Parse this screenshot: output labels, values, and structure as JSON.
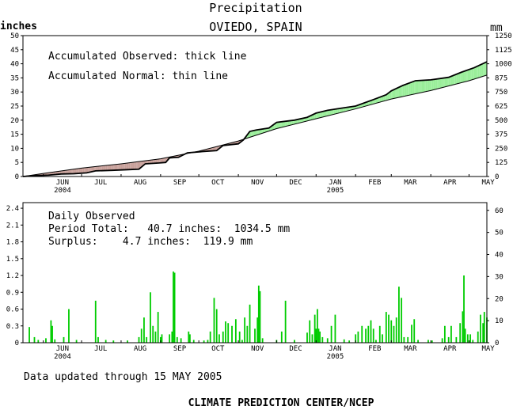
{
  "title": "Precipitation",
  "subtitle": "OVIEDO, SPAIN",
  "left_unit": "inches",
  "right_unit": "mm",
  "legend": {
    "observed": "Accumulated Observed: thick line",
    "normal": "Accumulated Normal: thin line"
  },
  "daily_box": {
    "title": "Daily Observed",
    "total": "Period Total:   40.7 inches:  1034.5 mm",
    "surplus": "Surplus:    4.7 inches:  119.9 mm"
  },
  "footer": {
    "updated": "Data updated through 15 MAY 2005",
    "credit": "CLIMATE PREDICTION CENTER/NCEP"
  },
  "colors": {
    "surplus_fill": "#99ee99",
    "deficit_fill": "#c8a09a",
    "daily_bar": "#00cc00"
  },
  "chart_data": [
    {
      "type": "area",
      "x_axis": {
        "type": "date",
        "start": "2004-05-16",
        "end": "2005-05-15",
        "ticks": [
          {
            "date": "2004-06-01",
            "label": "JUN",
            "year": "2004"
          },
          {
            "date": "2004-07-01",
            "label": "JUL"
          },
          {
            "date": "2004-08-01",
            "label": "AUG"
          },
          {
            "date": "2004-09-01",
            "label": "SEP"
          },
          {
            "date": "2004-10-01",
            "label": "OCT"
          },
          {
            "date": "2004-11-01",
            "label": "NOV"
          },
          {
            "date": "2004-12-01",
            "label": "DEC"
          },
          {
            "date": "2005-01-01",
            "label": "JAN",
            "year": "2005"
          },
          {
            "date": "2005-02-01",
            "label": "FEB"
          },
          {
            "date": "2005-03-01",
            "label": "MAR"
          },
          {
            "date": "2005-04-01",
            "label": "APR"
          },
          {
            "date": "2005-05-01",
            "label": "MAY"
          }
        ]
      },
      "y_left": {
        "unit": "inches",
        "ylim": [
          0,
          50
        ],
        "ticks": [
          0,
          5,
          10,
          15,
          20,
          25,
          30,
          35,
          40,
          45,
          50
        ]
      },
      "y_right": {
        "unit": "mm",
        "ylim": [
          0,
          1250
        ],
        "ticks": [
          0,
          125,
          250,
          375,
          500,
          625,
          750,
          875,
          1000,
          1125,
          1250
        ]
      },
      "series": [
        {
          "name": "Accumulated Observed",
          "points": [
            [
              "2004-05-16",
              0.0
            ],
            [
              "2004-05-25",
              0.3
            ],
            [
              "2004-06-05",
              0.5
            ],
            [
              "2004-06-15",
              0.9
            ],
            [
              "2004-06-25",
              1.0
            ],
            [
              "2004-07-05",
              1.3
            ],
            [
              "2004-07-12",
              2.0
            ],
            [
              "2004-07-25",
              2.2
            ],
            [
              "2004-08-05",
              2.4
            ],
            [
              "2004-08-15",
              2.6
            ],
            [
              "2004-08-20",
              4.5
            ],
            [
              "2004-08-31",
              4.8
            ],
            [
              "2004-09-05",
              5.0
            ],
            [
              "2004-09-08",
              6.6
            ],
            [
              "2004-09-15",
              6.8
            ],
            [
              "2004-09-22",
              8.4
            ],
            [
              "2004-10-05",
              8.9
            ],
            [
              "2004-10-15",
              9.2
            ],
            [
              "2004-10-20",
              11.0
            ],
            [
              "2004-11-01",
              11.6
            ],
            [
              "2004-11-05",
              13.0
            ],
            [
              "2004-11-10",
              16.0
            ],
            [
              "2004-11-15",
              16.5
            ],
            [
              "2004-11-25",
              17.2
            ],
            [
              "2004-12-01",
              19.2
            ],
            [
              "2004-12-15",
              20.0
            ],
            [
              "2004-12-25",
              21.0
            ],
            [
              "2005-01-01",
              22.5
            ],
            [
              "2005-01-10",
              23.5
            ],
            [
              "2005-01-20",
              24.2
            ],
            [
              "2005-02-01",
              25.0
            ],
            [
              "2005-02-15",
              27.3
            ],
            [
              "2005-02-25",
              29.0
            ],
            [
              "2005-03-01",
              30.4
            ],
            [
              "2005-03-10",
              32.3
            ],
            [
              "2005-03-20",
              34.0
            ],
            [
              "2005-04-01",
              34.3
            ],
            [
              "2005-04-15",
              35.2
            ],
            [
              "2005-04-25",
              37.0
            ],
            [
              "2005-05-05",
              38.6
            ],
            [
              "2005-05-15",
              40.7
            ]
          ]
        },
        {
          "name": "Accumulated Normal",
          "points": [
            [
              "2004-05-16",
              0.0
            ],
            [
              "2004-06-01",
              1.1
            ],
            [
              "2004-07-01",
              3.0
            ],
            [
              "2004-08-01",
              4.5
            ],
            [
              "2004-09-01",
              6.3
            ],
            [
              "2004-10-01",
              9.0
            ],
            [
              "2004-11-01",
              12.6
            ],
            [
              "2004-12-01",
              17.0
            ],
            [
              "2005-01-01",
              20.5
            ],
            [
              "2005-02-01",
              24.0
            ],
            [
              "2005-03-01",
              27.5
            ],
            [
              "2005-04-01",
              30.5
            ],
            [
              "2005-05-01",
              34.0
            ],
            [
              "2005-05-15",
              36.0
            ]
          ]
        }
      ]
    },
    {
      "type": "bar",
      "x_axis": {
        "type": "date",
        "start": "2004-05-16",
        "end": "2005-05-15"
      },
      "y_left": {
        "unit": "inches",
        "ylim": [
          0,
          2.5
        ],
        "ticks": [
          0,
          0.3,
          0.6,
          0.9,
          1.2,
          1.5,
          1.8,
          2.1,
          2.4
        ]
      },
      "y_right": {
        "unit": "mm",
        "ylim": [
          0,
          63.5
        ],
        "ticks": [
          0,
          10,
          20,
          30,
          40,
          50,
          60
        ]
      },
      "series": [
        {
          "name": "Daily Observed",
          "points": [
            [
              "2004-05-21",
              0.28
            ],
            [
              "2004-05-25",
              0.1
            ],
            [
              "2004-05-28",
              0.05
            ],
            [
              "2004-06-03",
              0.08
            ],
            [
              "2004-06-07",
              0.4
            ],
            [
              "2004-06-08",
              0.3
            ],
            [
              "2004-06-10",
              0.06
            ],
            [
              "2004-06-17",
              0.1
            ],
            [
              "2004-06-21",
              0.6
            ],
            [
              "2004-06-27",
              0.05
            ],
            [
              "2004-07-12",
              0.75
            ],
            [
              "2004-07-14",
              0.1
            ],
            [
              "2004-07-20",
              0.05
            ],
            [
              "2004-07-26",
              0.04
            ],
            [
              "2004-08-06",
              0.04
            ],
            [
              "2004-08-15",
              0.1
            ],
            [
              "2004-08-17",
              0.25
            ],
            [
              "2004-08-19",
              0.45
            ],
            [
              "2004-08-21",
              0.1
            ],
            [
              "2004-08-24",
              0.9
            ],
            [
              "2004-08-26",
              0.3
            ],
            [
              "2004-08-28",
              0.2
            ],
            [
              "2004-08-30",
              0.55
            ],
            [
              "2004-09-01",
              0.1
            ],
            [
              "2004-09-02",
              0.15
            ],
            [
              "2004-09-08",
              0.15
            ],
            [
              "2004-09-10",
              0.2
            ],
            [
              "2004-09-11",
              1.27
            ],
            [
              "2004-09-12",
              1.25
            ],
            [
              "2004-09-14",
              0.1
            ],
            [
              "2004-09-17",
              0.08
            ],
            [
              "2004-09-23",
              0.2
            ],
            [
              "2004-09-24",
              0.15
            ],
            [
              "2004-09-27",
              0.05
            ],
            [
              "2004-10-05",
              0.04
            ],
            [
              "2004-10-08",
              0.05
            ],
            [
              "2004-10-10",
              0.2
            ],
            [
              "2004-10-13",
              0.8
            ],
            [
              "2004-10-15",
              0.6
            ],
            [
              "2004-10-17",
              0.15
            ],
            [
              "2004-10-20",
              0.2
            ],
            [
              "2004-10-22",
              0.38
            ],
            [
              "2004-10-24",
              0.35
            ],
            [
              "2004-10-27",
              0.3
            ],
            [
              "2004-10-30",
              0.42
            ],
            [
              "2004-11-02",
              0.2
            ],
            [
              "2004-11-04",
              0.05
            ],
            [
              "2004-11-06",
              0.45
            ],
            [
              "2004-11-08",
              0.3
            ],
            [
              "2004-11-10",
              0.68
            ],
            [
              "2004-11-14",
              0.25
            ],
            [
              "2004-11-16",
              0.45
            ],
            [
              "2004-11-17",
              1.02
            ],
            [
              "2004-11-18",
              0.92
            ],
            [
              "2004-11-20",
              0.08
            ],
            [
              "2004-12-01",
              0.05
            ],
            [
              "2004-12-05",
              0.2
            ],
            [
              "2004-12-08",
              0.75
            ],
            [
              "2004-12-15",
              0.05
            ],
            [
              "2004-12-25",
              0.18
            ],
            [
              "2004-12-27",
              0.4
            ],
            [
              "2004-12-29",
              0.15
            ],
            [
              "2004-12-31",
              0.5
            ],
            [
              "2005-01-01",
              0.25
            ],
            [
              "2005-01-02",
              0.6
            ],
            [
              "2005-01-03",
              0.25
            ],
            [
              "2005-01-04",
              0.2
            ],
            [
              "2005-01-06",
              0.1
            ],
            [
              "2005-01-10",
              0.08
            ],
            [
              "2005-01-13",
              0.3
            ],
            [
              "2005-01-16",
              0.5
            ],
            [
              "2005-01-23",
              0.06
            ],
            [
              "2005-01-27",
              0.04
            ],
            [
              "2005-02-01",
              0.15
            ],
            [
              "2005-02-03",
              0.2
            ],
            [
              "2005-02-06",
              0.3
            ],
            [
              "2005-02-09",
              0.25
            ],
            [
              "2005-02-11",
              0.3
            ],
            [
              "2005-02-13",
              0.4
            ],
            [
              "2005-02-15",
              0.25
            ],
            [
              "2005-02-17",
              0.05
            ],
            [
              "2005-02-20",
              0.3
            ],
            [
              "2005-02-22",
              0.15
            ],
            [
              "2005-02-25",
              0.55
            ],
            [
              "2005-02-27",
              0.5
            ],
            [
              "2005-03-01",
              0.4
            ],
            [
              "2005-03-03",
              0.3
            ],
            [
              "2005-03-05",
              0.45
            ],
            [
              "2005-03-07",
              1.0
            ],
            [
              "2005-03-09",
              0.8
            ],
            [
              "2005-03-11",
              0.1
            ],
            [
              "2005-03-14",
              0.1
            ],
            [
              "2005-03-17",
              0.32
            ],
            [
              "2005-03-19",
              0.42
            ],
            [
              "2005-03-22",
              0.05
            ],
            [
              "2005-03-30",
              0.05
            ],
            [
              "2005-04-02",
              0.04
            ],
            [
              "2005-04-10",
              0.08
            ],
            [
              "2005-04-12",
              0.3
            ],
            [
              "2005-04-15",
              0.1
            ],
            [
              "2005-04-17",
              0.3
            ],
            [
              "2005-04-21",
              0.1
            ],
            [
              "2005-04-24",
              0.35
            ],
            [
              "2005-04-26",
              0.56
            ],
            [
              "2005-04-27",
              1.2
            ],
            [
              "2005-04-28",
              0.25
            ],
            [
              "2005-04-30",
              0.15
            ],
            [
              "2005-05-02",
              0.15
            ],
            [
              "2005-05-04",
              0.05
            ],
            [
              "2005-05-08",
              0.2
            ],
            [
              "2005-05-10",
              0.5
            ],
            [
              "2005-05-12",
              0.35
            ],
            [
              "2005-05-13",
              0.55
            ],
            [
              "2005-05-15",
              0.45
            ]
          ]
        }
      ]
    }
  ]
}
